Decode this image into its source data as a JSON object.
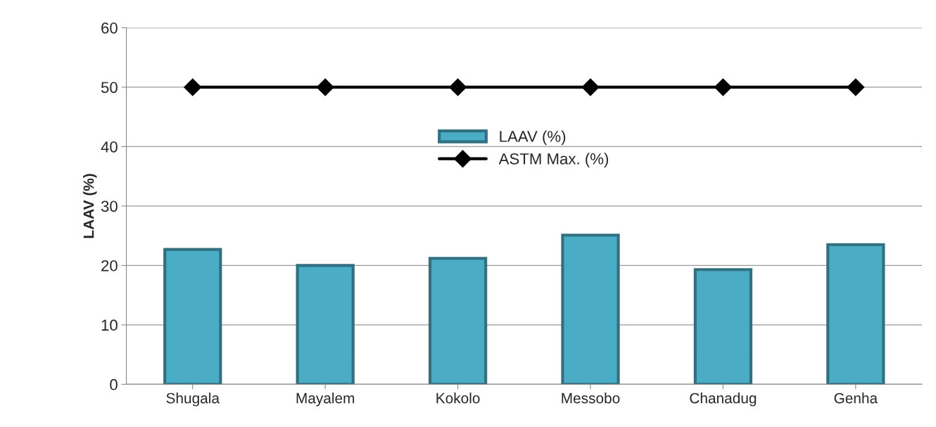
{
  "chart_data": {
    "type": "bar",
    "ylabel": "LAAV (%)",
    "categories": [
      "Shugala",
      "Mayalem",
      "Kokolo",
      "Messobo",
      "Chanadug",
      "Genha"
    ],
    "series": [
      {
        "name": "LAAV (%)",
        "color": "#4bacc6",
        "values": [
          22.7,
          20.0,
          21.2,
          25.1,
          19.3,
          23.5
        ]
      },
      {
        "name": "ASTM Max. (%)",
        "type": "line",
        "color": "#000000",
        "marker": "diamond",
        "values": [
          50,
          50,
          50,
          50,
          50,
          50
        ]
      }
    ],
    "ylim": [
      0,
      60
    ],
    "yticks": [
      0,
      10,
      20,
      30,
      40,
      50,
      60
    ],
    "grid": "y",
    "legend": "center"
  }
}
